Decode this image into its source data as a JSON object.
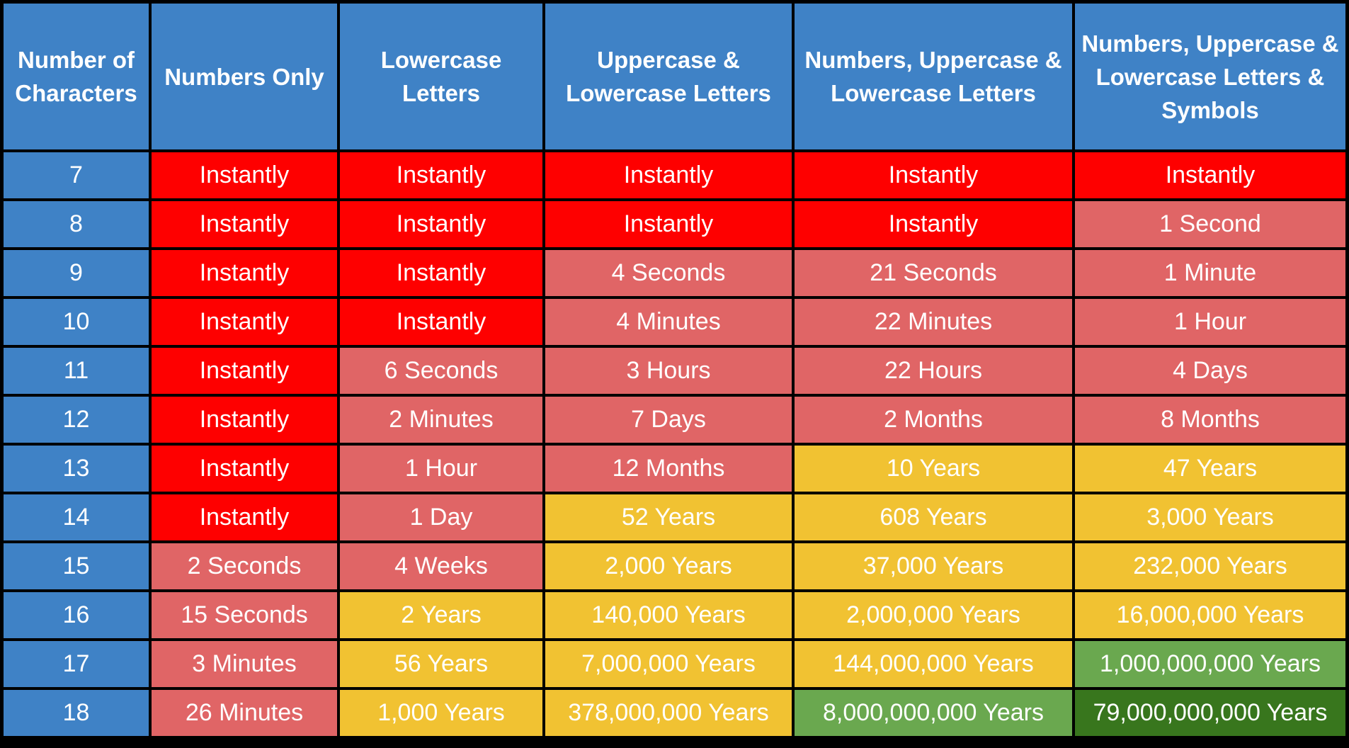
{
  "headers": [
    "Number of Characters",
    "Numbers Only",
    "Lowercase Letters",
    "Uppercase & Lowercase Letters",
    "Numbers, Uppercase & Lowercase Letters",
    "Numbers, Uppercase & Lowercase Letters & Symbols"
  ],
  "colors": {
    "header": "#3f82c6",
    "instant": "#fe0000",
    "weak": "#e06566",
    "moderate": "#f1c232",
    "strong": "#6aa84f",
    "very_strong": "#38761d"
  },
  "rows": [
    {
      "chars": "7",
      "cells": [
        {
          "text": "Instantly",
          "level": "instant"
        },
        {
          "text": "Instantly",
          "level": "instant"
        },
        {
          "text": "Instantly",
          "level": "instant"
        },
        {
          "text": "Instantly",
          "level": "instant"
        },
        {
          "text": "Instantly",
          "level": "instant"
        }
      ]
    },
    {
      "chars": "8",
      "cells": [
        {
          "text": "Instantly",
          "level": "instant"
        },
        {
          "text": "Instantly",
          "level": "instant"
        },
        {
          "text": "Instantly",
          "level": "instant"
        },
        {
          "text": "Instantly",
          "level": "instant"
        },
        {
          "text": "1 Second",
          "level": "weak"
        }
      ]
    },
    {
      "chars": "9",
      "cells": [
        {
          "text": "Instantly",
          "level": "instant"
        },
        {
          "text": "Instantly",
          "level": "instant"
        },
        {
          "text": "4 Seconds",
          "level": "weak"
        },
        {
          "text": "21 Seconds",
          "level": "weak"
        },
        {
          "text": "1 Minute",
          "level": "weak"
        }
      ]
    },
    {
      "chars": "10",
      "cells": [
        {
          "text": "Instantly",
          "level": "instant"
        },
        {
          "text": "Instantly",
          "level": "instant"
        },
        {
          "text": "4 Minutes",
          "level": "weak"
        },
        {
          "text": "22 Minutes",
          "level": "weak"
        },
        {
          "text": "1 Hour",
          "level": "weak"
        }
      ]
    },
    {
      "chars": "11",
      "cells": [
        {
          "text": "Instantly",
          "level": "instant"
        },
        {
          "text": "6 Seconds",
          "level": "weak"
        },
        {
          "text": "3 Hours",
          "level": "weak"
        },
        {
          "text": "22 Hours",
          "level": "weak"
        },
        {
          "text": "4 Days",
          "level": "weak"
        }
      ]
    },
    {
      "chars": "12",
      "cells": [
        {
          "text": "Instantly",
          "level": "instant"
        },
        {
          "text": "2 Minutes",
          "level": "weak"
        },
        {
          "text": "7 Days",
          "level": "weak"
        },
        {
          "text": "2 Months",
          "level": "weak"
        },
        {
          "text": "8 Months",
          "level": "weak"
        }
      ]
    },
    {
      "chars": "13",
      "cells": [
        {
          "text": "Instantly",
          "level": "instant"
        },
        {
          "text": "1 Hour",
          "level": "weak"
        },
        {
          "text": "12 Months",
          "level": "weak"
        },
        {
          "text": "10 Years",
          "level": "moderate"
        },
        {
          "text": "47 Years",
          "level": "moderate"
        }
      ]
    },
    {
      "chars": "14",
      "cells": [
        {
          "text": "Instantly",
          "level": "instant"
        },
        {
          "text": "1 Day",
          "level": "weak"
        },
        {
          "text": "52 Years",
          "level": "moderate"
        },
        {
          "text": "608 Years",
          "level": "moderate"
        },
        {
          "text": "3,000 Years",
          "level": "moderate"
        }
      ]
    },
    {
      "chars": "15",
      "cells": [
        {
          "text": "2 Seconds",
          "level": "weak"
        },
        {
          "text": "4 Weeks",
          "level": "weak"
        },
        {
          "text": "2,000 Years",
          "level": "moderate"
        },
        {
          "text": "37,000 Years",
          "level": "moderate"
        },
        {
          "text": "232,000 Years",
          "level": "moderate"
        }
      ]
    },
    {
      "chars": "16",
      "cells": [
        {
          "text": "15 Seconds",
          "level": "weak"
        },
        {
          "text": "2 Years",
          "level": "moderate"
        },
        {
          "text": "140,000 Years",
          "level": "moderate"
        },
        {
          "text": "2,000,000 Years",
          "level": "moderate"
        },
        {
          "text": "16,000,000 Years",
          "level": "moderate"
        }
      ]
    },
    {
      "chars": "17",
      "cells": [
        {
          "text": "3 Minutes",
          "level": "weak"
        },
        {
          "text": "56 Years",
          "level": "moderate"
        },
        {
          "text": "7,000,000 Years",
          "level": "moderate"
        },
        {
          "text": "144,000,000 Years",
          "level": "moderate"
        },
        {
          "text": "1,000,000,000 Years",
          "level": "strong"
        }
      ]
    },
    {
      "chars": "18",
      "cells": [
        {
          "text": "26 Minutes",
          "level": "weak"
        },
        {
          "text": "1,000 Years",
          "level": "moderate"
        },
        {
          "text": "378,000,000 Years",
          "level": "moderate"
        },
        {
          "text": "8,000,000,000 Years",
          "level": "strong"
        },
        {
          "text": "79,000,000,000 Years",
          "level": "very_strong"
        }
      ]
    }
  ]
}
